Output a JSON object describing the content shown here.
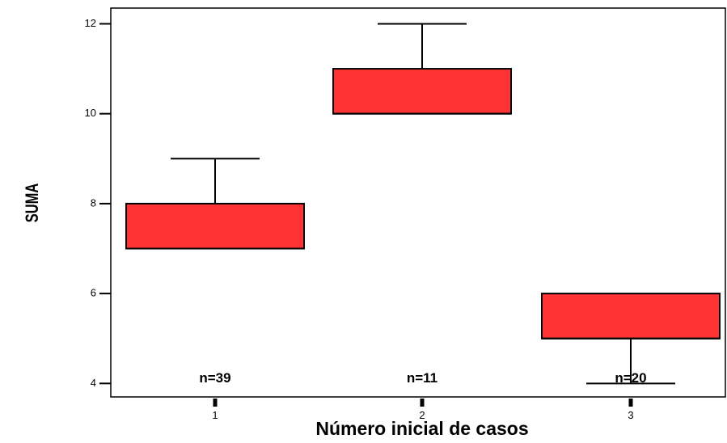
{
  "chart_data": {
    "type": "box",
    "xlabel": "Número inicial de casos",
    "ylabel": "SUMA",
    "ylim": [
      3.7,
      12.35
    ],
    "yticks": [
      4,
      6,
      8,
      10,
      12
    ],
    "categories": [
      "1",
      "2",
      "3"
    ],
    "boxes": [
      {
        "category": "1",
        "whisker_low": 7,
        "q1": 7,
        "median": 7,
        "q3": 8,
        "whisker_high": 9,
        "n_label": "n=39"
      },
      {
        "category": "2",
        "whisker_low": 10,
        "q1": 10,
        "median": 10,
        "q3": 11,
        "whisker_high": 12,
        "n_label": "n=11"
      },
      {
        "category": "3",
        "whisker_low": 4,
        "q1": 5,
        "median": 5,
        "q3": 6,
        "whisker_high": 6,
        "n_label": "n=20"
      }
    ],
    "box_color": "#ff3333",
    "grid": false,
    "legend": "none"
  }
}
